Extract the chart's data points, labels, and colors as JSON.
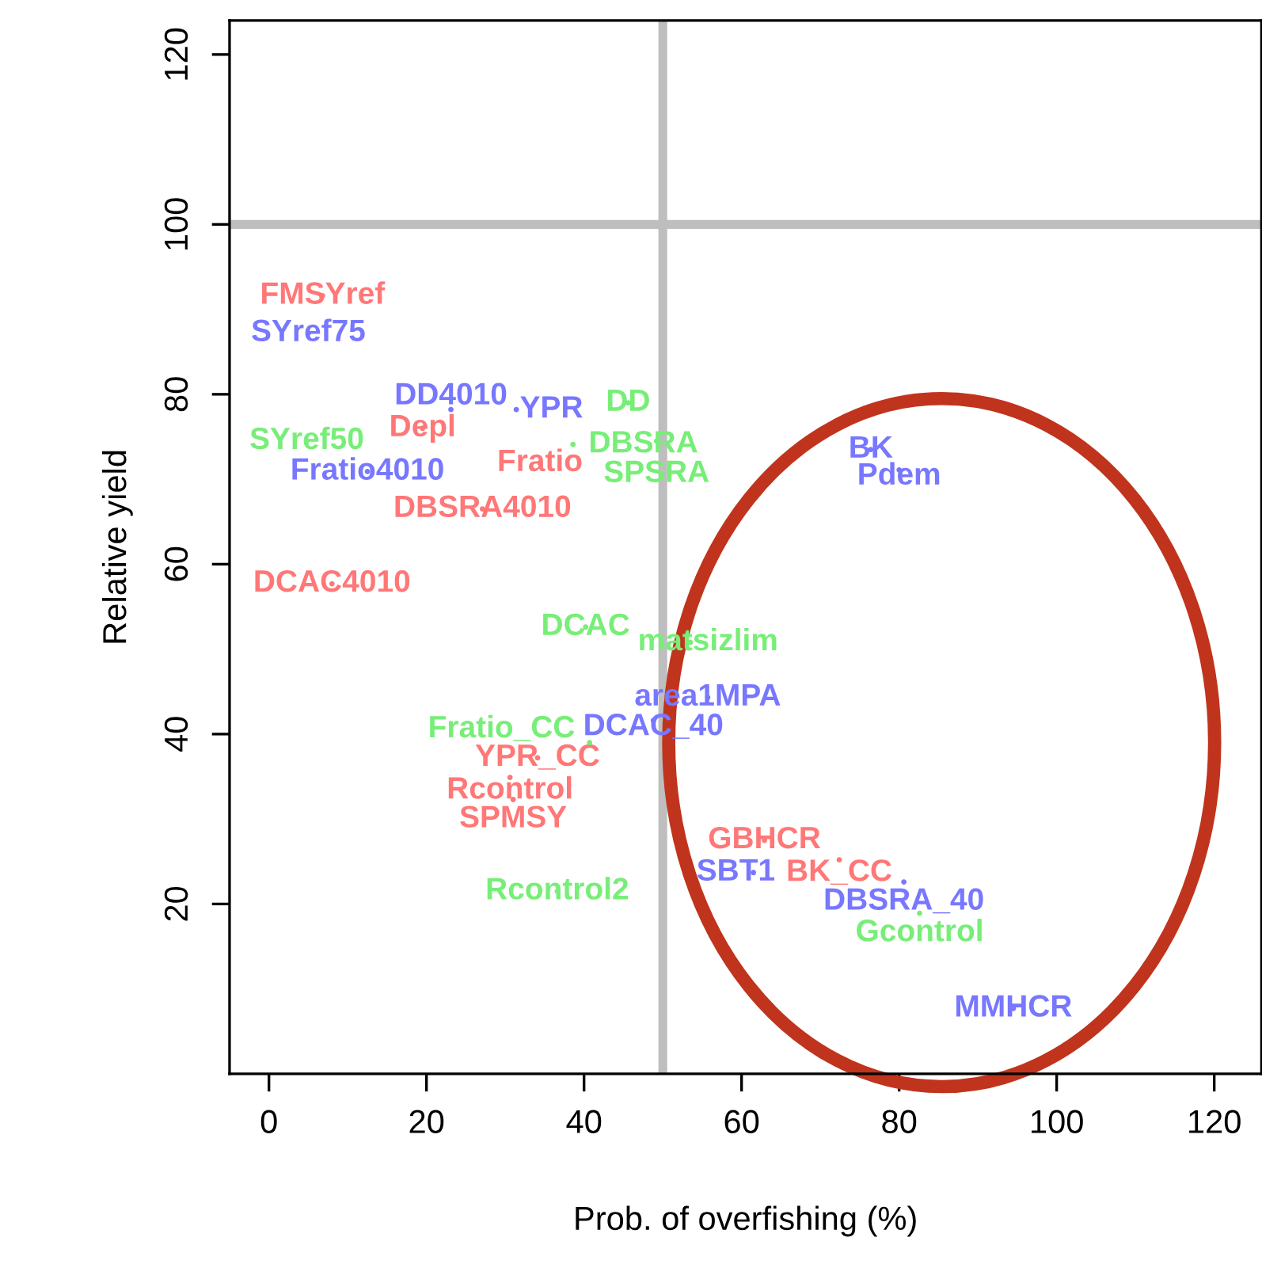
{
  "chart_data": {
    "type": "scatter",
    "xlabel": "Prob. of overfishing (%)",
    "ylabel": "Relative yield",
    "xlim": [
      -5,
      126
    ],
    "ylim": [
      0,
      124
    ],
    "xticks": [
      0,
      20,
      40,
      60,
      80,
      100,
      120
    ],
    "yticks": [
      20,
      40,
      60,
      80,
      100,
      120
    ],
    "grid": false,
    "legend": false,
    "ref_lines": [
      {
        "axis": "x",
        "value": 50,
        "color": "#bebebe"
      },
      {
        "axis": "y",
        "value": 100,
        "color": "#bebebe"
      }
    ],
    "series": [
      {
        "color": "#ff7777",
        "x": [
          6.8,
          19.5,
          34.4,
          27.1,
          8.0,
          34.1,
          30.6,
          31.0,
          62.9,
          72.4
        ],
        "values": [
          91.6,
          76.0,
          71.9,
          66.5,
          57.7,
          37.2,
          34.9,
          32.3,
          27.5,
          25.2
        ]
      },
      {
        "color": "#7777ff",
        "x": [
          5.0,
          23.1,
          31.4,
          12.5,
          76.4,
          80.0,
          55.7,
          48.8,
          61.5,
          80.6,
          94.5
        ],
        "values": [
          87.2,
          78.2,
          78.2,
          70.9,
          73.5,
          71.1,
          44.3,
          41.6,
          23.7,
          22.6,
          7.7
        ]
      },
      {
        "color": "#77ee77",
        "x": [
          45.6,
          38.6,
          49.2,
          4.8,
          40.2,
          53.5,
          40.7,
          36.6,
          82.6
        ],
        "values": [
          79.0,
          74.1,
          74.5,
          74.5,
          52.6,
          50.8,
          39.0,
          21.5,
          18.9
        ]
      }
    ],
    "annotations": [
      {
        "text": "FMSYref",
        "x": 6.8,
        "y": 91.6
      },
      {
        "text": "Depl",
        "x": 19.5,
        "y": 76.0
      },
      {
        "text": "Fratio",
        "x": 34.4,
        "y": 71.9
      },
      {
        "text": "DBSRA4010",
        "x": 27.1,
        "y": 66.5
      },
      {
        "text": "DCAC4010",
        "x": 8.0,
        "y": 57.7
      },
      {
        "text": "YPR_CC",
        "x": 34.1,
        "y": 37.2
      },
      {
        "text": "Rcontrol",
        "x": 30.6,
        "y": 34.9
      },
      {
        "text": "SPMSY",
        "x": 31.0,
        "y": 32.3
      },
      {
        "text": "GBHCR",
        "x": 62.9,
        "y": 27.5
      },
      {
        "text": "BK_CC",
        "x": 72.4,
        "y": 25.2
      },
      {
        "text": "SYref75",
        "x": 5.0,
        "y": 87.2
      },
      {
        "text": "DD4010",
        "x": 23.1,
        "y": 78.2
      },
      {
        "text": "YPR",
        "x": 31.4,
        "y": 78.2
      },
      {
        "text": "Fratio4010",
        "x": 12.5,
        "y": 70.9
      },
      {
        "text": "BK",
        "x": 76.4,
        "y": 73.5
      },
      {
        "text": "Pdem",
        "x": 80.0,
        "y": 71.1
      },
      {
        "text": "area1MPA",
        "x": 55.7,
        "y": 44.3
      },
      {
        "text": "DCAC_40",
        "x": 48.8,
        "y": 41.6
      },
      {
        "text": "SBT1",
        "x": 61.5,
        "y": 23.7
      },
      {
        "text": "DBSRA_40",
        "x": 80.6,
        "y": 22.6
      },
      {
        "text": "MMHCR",
        "x": 94.5,
        "y": 7.7
      },
      {
        "text": "DD",
        "x": 45.6,
        "y": 79.0
      },
      {
        "text": "DBSRA",
        "x": 38.6,
        "y": 74.1
      },
      {
        "text": "SPSRA",
        "x": 49.2,
        "y": 74.5
      },
      {
        "text": "SYref50",
        "x": 4.8,
        "y": 74.5
      },
      {
        "text": "DCAC",
        "x": 40.2,
        "y": 52.6
      },
      {
        "text": "matsizlim",
        "x": 53.5,
        "y": 50.8
      },
      {
        "text": "Fratio_CC",
        "x": 40.7,
        "y": 39.0
      },
      {
        "text": "Rcontrol2",
        "x": 36.6,
        "y": 21.5
      },
      {
        "text": "Gcontrol",
        "x": 82.6,
        "y": 18.9
      }
    ]
  }
}
